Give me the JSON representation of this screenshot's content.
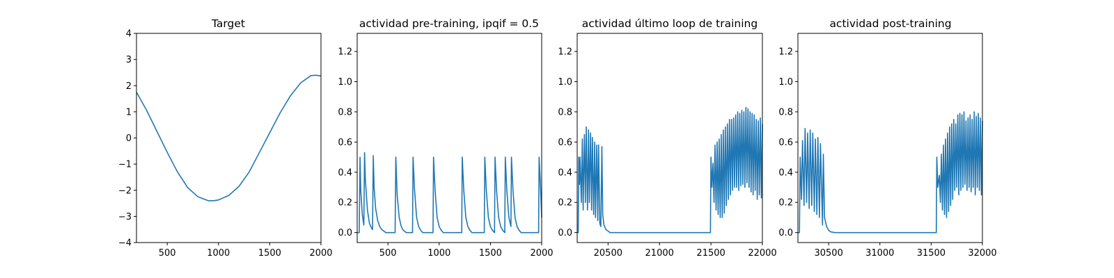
{
  "chart_data": [
    {
      "type": "line",
      "title": "Target",
      "xlabel": "",
      "ylabel": "",
      "xlim": [
        200,
        2000
      ],
      "ylim": [
        -4,
        4
      ],
      "xticks": [
        500,
        1000,
        1500,
        2000
      ],
      "yticks": [
        -4,
        -3,
        -2,
        -1,
        0,
        1,
        2,
        3,
        4
      ],
      "xtick_labels": [
        "500",
        "1000",
        "1500",
        "2000"
      ],
      "ytick_labels": [
        "−4",
        "−3",
        "−2",
        "−1",
        "0",
        "1",
        "2",
        "3",
        "4"
      ],
      "color": "#1f77b4",
      "series": [
        {
          "x": [
            200,
            300,
            400,
            500,
            600,
            700,
            800,
            900,
            955,
            1000,
            1100,
            1200,
            1300,
            1400,
            1500,
            1600,
            1700,
            1800,
            1900,
            1950,
            2000
          ],
          "y": [
            1.75,
            1.05,
            0.25,
            -0.55,
            -1.3,
            -1.9,
            -2.25,
            -2.4,
            -2.4,
            -2.37,
            -2.2,
            -1.85,
            -1.3,
            -0.55,
            0.2,
            0.95,
            1.6,
            2.1,
            2.38,
            2.4,
            2.37
          ]
        }
      ]
    },
    {
      "type": "line",
      "title": "actividad pre-training, ipqif = 0.5",
      "xlabel": "",
      "ylabel": "",
      "xlim": [
        200,
        2000
      ],
      "ylim": [
        -0.066,
        1.32
      ],
      "xticks": [
        500,
        1000,
        1500,
        2000
      ],
      "yticks": [
        0.0,
        0.2,
        0.4,
        0.6,
        0.8,
        1.0,
        1.2
      ],
      "xtick_labels": [
        "500",
        "1000",
        "1500",
        "2000"
      ],
      "ytick_labels": [
        "0.0",
        "0.2",
        "0.4",
        "0.6",
        "0.8",
        "1.0",
        "1.2"
      ],
      "color": "#1f77b4",
      "series": [
        {
          "x": [
            200,
            220,
            228,
            235,
            250,
            265,
            272,
            280,
            300,
            320,
            340,
            350,
            357,
            365,
            380,
            400,
            420,
            440,
            460,
            480,
            500,
            520,
            540,
            560,
            570,
            577,
            590,
            610,
            630,
            650,
            680,
            700,
            720,
            740,
            745,
            760,
            780,
            800,
            820,
            840,
            860,
            880,
            900,
            920,
            940,
            945,
            960,
            980,
            1000,
            1020,
            1040,
            1080,
            1120,
            1160,
            1200,
            1220,
            1225,
            1240,
            1260,
            1280,
            1300,
            1320,
            1340,
            1360,
            1380,
            1400,
            1420,
            1440,
            1445,
            1460,
            1480,
            1500,
            1520,
            1540,
            1545,
            1560,
            1580,
            1600,
            1620,
            1640,
            1645,
            1660,
            1680,
            1700,
            1705,
            1720,
            1740,
            1760,
            1780,
            1800,
            1840,
            1880,
            1920,
            1960,
            1970,
            1975,
            1990,
            2000
          ],
          "y": [
            0.0,
            0.0,
            0.5,
            0.28,
            0.12,
            0.05,
            0.53,
            0.35,
            0.15,
            0.06,
            0.03,
            0.02,
            0.51,
            0.3,
            0.16,
            0.08,
            0.04,
            0.02,
            0.01,
            0.0,
            0.0,
            0.0,
            0.0,
            0.0,
            0.0,
            0.5,
            0.25,
            0.1,
            0.04,
            0.015,
            0.0,
            0.0,
            0.0,
            0.0,
            0.5,
            0.28,
            0.1,
            0.04,
            0.015,
            0.0,
            0.0,
            0.0,
            0.0,
            0.0,
            0.0,
            0.5,
            0.28,
            0.1,
            0.04,
            0.015,
            0.0,
            0.0,
            0.0,
            0.0,
            0.0,
            0.0,
            0.5,
            0.28,
            0.1,
            0.04,
            0.015,
            0.0,
            0.0,
            0.0,
            0.0,
            0.0,
            0.0,
            0.0,
            0.5,
            0.28,
            0.1,
            0.04,
            0.015,
            0.0,
            0.5,
            0.28,
            0.1,
            0.04,
            0.015,
            0.0,
            0.5,
            0.28,
            0.1,
            0.04,
            0.5,
            0.28,
            0.1,
            0.04,
            0.015,
            0.0,
            0.0,
            0.0,
            0.0,
            0.0,
            0.0,
            0.5,
            0.28,
            0.1
          ]
        }
      ]
    },
    {
      "type": "line",
      "title": "actividad último loop de training",
      "xlabel": "",
      "ylabel": "",
      "xlim": [
        20200,
        22000
      ],
      "ylim": [
        -0.066,
        1.32
      ],
      "xticks": [
        20500,
        21000,
        21500,
        22000
      ],
      "yticks": [
        0.0,
        0.2,
        0.4,
        0.6,
        0.8,
        1.0,
        1.2
      ],
      "xtick_labels": [
        "20500",
        "21000",
        "21500",
        "22000"
      ],
      "ytick_labels": [
        "0.0",
        "0.2",
        "0.4",
        "0.6",
        "0.8",
        "1.0",
        "1.2"
      ],
      "color": "#1f77b4",
      "series": [
        {
          "x": [
            20200,
            20210,
            20215,
            20222,
            20228,
            20240,
            20250,
            20258,
            20270,
            20280,
            20288,
            20300,
            20310,
            20318,
            20330,
            20340,
            20348,
            20360,
            20370,
            20378,
            20390,
            20400,
            20408,
            20420,
            20430,
            20440,
            20448,
            20460,
            20480,
            20500,
            20520,
            20540,
            20560,
            20600,
            20700,
            20800,
            20900,
            21000,
            21100,
            21200,
            21300,
            21400,
            21495,
            21500,
            21510,
            21520,
            21530,
            21540,
            21550,
            21560,
            21570,
            21580,
            21590,
            21600,
            21610,
            21620,
            21630,
            21640,
            21650,
            21660,
            21670,
            21680,
            21690,
            21700,
            21710,
            21720,
            21730,
            21740,
            21750,
            21760,
            21770,
            21780,
            21790,
            21800,
            21810,
            21820,
            21830,
            21840,
            21850,
            21860,
            21870,
            21880,
            21890,
            21900,
            21910,
            21920,
            21930,
            21940,
            21950,
            21960,
            21970,
            21980,
            21990,
            22000
          ],
          "y": [
            0.0,
            0.0,
            0.5,
            0.32,
            0.5,
            0.2,
            0.62,
            0.15,
            0.65,
            0.2,
            0.7,
            0.15,
            0.68,
            0.2,
            0.66,
            0.15,
            0.63,
            0.12,
            0.6,
            0.1,
            0.58,
            0.08,
            0.58,
            0.06,
            0.04,
            0.57,
            0.12,
            0.05,
            0.02,
            0.01,
            0.0,
            0.0,
            0.0,
            0.0,
            0.0,
            0.0,
            0.0,
            0.0,
            0.0,
            0.0,
            0.0,
            0.0,
            0.0,
            0.5,
            0.3,
            0.46,
            0.2,
            0.58,
            0.15,
            0.6,
            0.12,
            0.62,
            0.1,
            0.65,
            0.1,
            0.68,
            0.13,
            0.7,
            0.18,
            0.72,
            0.22,
            0.75,
            0.25,
            0.75,
            0.28,
            0.76,
            0.3,
            0.78,
            0.3,
            0.8,
            0.28,
            0.79,
            0.31,
            0.81,
            0.32,
            0.8,
            0.3,
            0.83,
            0.33,
            0.82,
            0.3,
            0.8,
            0.27,
            0.79,
            0.25,
            0.78,
            0.28,
            0.75,
            0.22,
            0.74,
            0.25,
            0.76,
            0.23,
            0.72
          ]
        }
      ]
    },
    {
      "type": "line",
      "title": "actividad post-training",
      "xlabel": "",
      "ylabel": "",
      "xlim": [
        30200,
        32000
      ],
      "ylim": [
        -0.066,
        1.32
      ],
      "xticks": [
        30500,
        31000,
        31500,
        32000
      ],
      "yticks": [
        0.0,
        0.2,
        0.4,
        0.6,
        0.8,
        1.0,
        1.2
      ],
      "xtick_labels": [
        "30500",
        "31000",
        "31500",
        "32000"
      ],
      "ytick_labels": [
        "0.0",
        "0.2",
        "0.4",
        "0.6",
        "0.8",
        "1.0",
        "1.2"
      ],
      "color": "#1f77b4",
      "series": [
        {
          "x": [
            30200,
            30215,
            30222,
            30235,
            30245,
            30260,
            30270,
            30285,
            30295,
            30310,
            30320,
            30335,
            30345,
            30360,
            30370,
            30385,
            30395,
            30410,
            30420,
            30440,
            30448,
            30460,
            30480,
            30500,
            30520,
            30560,
            30700,
            30900,
            31100,
            31300,
            31500,
            31550,
            31555,
            31565,
            31580,
            31590,
            31600,
            31610,
            31620,
            31630,
            31640,
            31650,
            31660,
            31670,
            31680,
            31690,
            31700,
            31710,
            31720,
            31730,
            31740,
            31750,
            31760,
            31770,
            31780,
            31790,
            31800,
            31810,
            31820,
            31830,
            31840,
            31850,
            31860,
            31870,
            31880,
            31890,
            31900,
            31910,
            31920,
            31930,
            31940,
            31950,
            31960,
            31970,
            31980,
            31990,
            32000
          ],
          "y": [
            0.0,
            0.0,
            0.5,
            0.22,
            0.61,
            0.18,
            0.69,
            0.2,
            0.66,
            0.16,
            0.68,
            0.18,
            0.66,
            0.14,
            0.62,
            0.12,
            0.63,
            0.1,
            0.59,
            0.05,
            0.52,
            0.1,
            0.04,
            0.015,
            0.005,
            0.0,
            0.0,
            0.0,
            0.0,
            0.0,
            0.0,
            0.0,
            0.5,
            0.3,
            0.38,
            0.2,
            0.52,
            0.15,
            0.58,
            0.12,
            0.62,
            0.1,
            0.66,
            0.14,
            0.7,
            0.18,
            0.72,
            0.22,
            0.75,
            0.28,
            0.72,
            0.3,
            0.78,
            0.25,
            0.79,
            0.28,
            0.78,
            0.3,
            0.8,
            0.32,
            0.74,
            0.28,
            0.76,
            0.3,
            0.78,
            0.27,
            0.75,
            0.3,
            0.8,
            0.25,
            0.77,
            0.3,
            0.79,
            0.28,
            0.76,
            0.25,
            0.74
          ]
        }
      ]
    }
  ]
}
